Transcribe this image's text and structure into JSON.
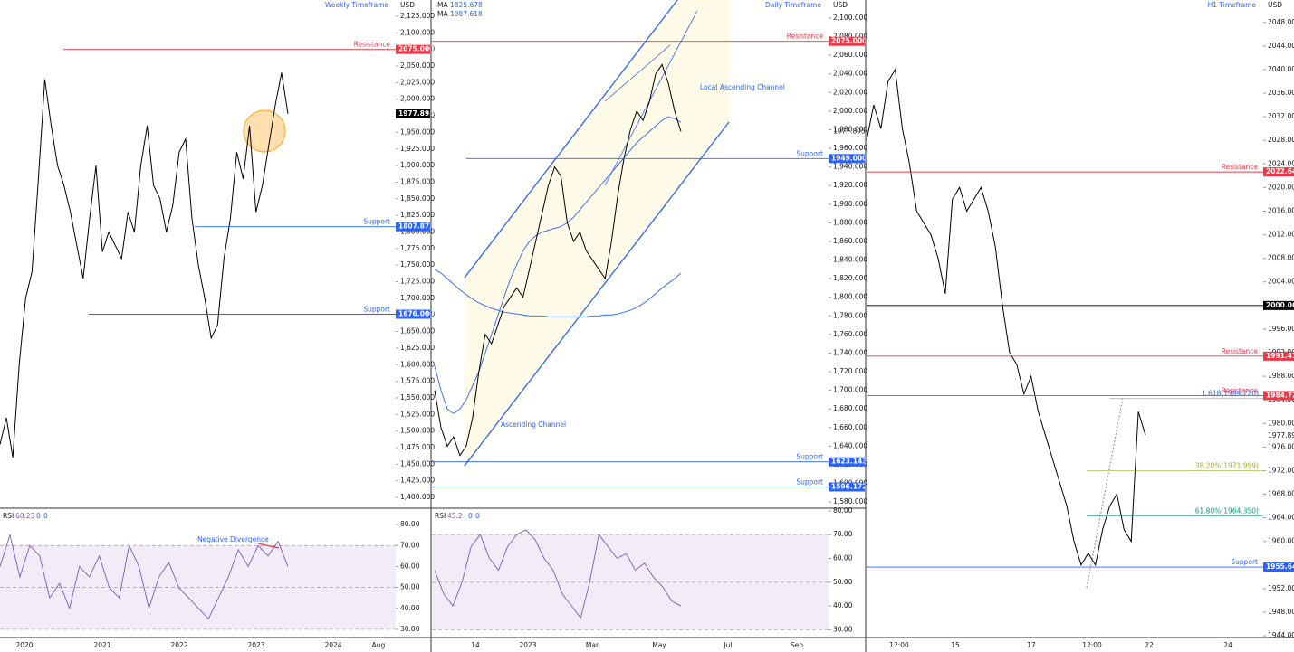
{
  "chart_data": [
    {
      "type": "line",
      "title": "Weekly Timeframe",
      "currency": "USD",
      "color": "#000000",
      "ylim": [
        1383.7,
        2149.5
      ],
      "yticks": [
        {
          "value": 2125,
          "label": "2,125.000"
        },
        {
          "value": 2100,
          "label": "2,100.000"
        },
        {
          "value": 2075,
          "label": "2,075.000"
        },
        {
          "value": 2050,
          "label": "2,050.000"
        },
        {
          "value": 2025,
          "label": "2,025.000"
        },
        {
          "value": 2000,
          "label": "2,000.000"
        },
        {
          "value": 1975,
          "label": "1,975.000"
        },
        {
          "value": 1950,
          "label": "1,950.000"
        },
        {
          "value": 1925,
          "label": "1,925.000"
        },
        {
          "value": 1900,
          "label": "1,900.000"
        },
        {
          "value": 1875,
          "label": "1,875.000"
        },
        {
          "value": 1850,
          "label": "1,850.000"
        },
        {
          "value": 1825,
          "label": "1,825.000"
        },
        {
          "value": 1800,
          "label": "1,800.000"
        },
        {
          "value": 1775,
          "label": "1,775.000"
        },
        {
          "value": 1750,
          "label": "1,750.000"
        },
        {
          "value": 1725,
          "label": "1,725.000"
        },
        {
          "value": 1700,
          "label": "1,700.000"
        },
        {
          "value": 1675,
          "label": "1,675.000"
        },
        {
          "value": 1650,
          "label": "1,650.000"
        },
        {
          "value": 1625,
          "label": "1,625.000"
        },
        {
          "value": 1600,
          "label": "1,600.000"
        },
        {
          "value": 1575,
          "label": "1,575.000"
        },
        {
          "value": 1550,
          "label": "1,550.000"
        },
        {
          "value": 1525,
          "label": "1,525.000"
        },
        {
          "value": 1500,
          "label": "1,500.000"
        },
        {
          "value": 1475,
          "label": "1,475.000"
        },
        {
          "value": 1450,
          "label": "1,450.000"
        },
        {
          "value": 1425,
          "label": "1,425.000"
        },
        {
          "value": 1400,
          "label": "1,400.000"
        }
      ],
      "values": [
        1480,
        1520,
        1460,
        1600,
        1700,
        1740,
        1880,
        2030,
        1960,
        1900,
        1870,
        1830,
        1780,
        1730,
        1820,
        1900,
        1770,
        1800,
        1780,
        1760,
        1830,
        1800,
        1900,
        1960,
        1870,
        1850,
        1800,
        1840,
        1920,
        1940,
        1820,
        1750,
        1700,
        1640,
        1660,
        1760,
        1820,
        1920,
        1880,
        1960,
        1830,
        1870,
        1930,
        1990,
        2040,
        1978
      ],
      "xlabels": [
        "2020",
        "2021",
        "2022",
        "2023",
        "2024",
        "Aug"
      ],
      "levels": [
        {
          "name": "Resistance",
          "value": 2075,
          "label": "2075.000",
          "color": "#f23645"
        },
        {
          "name": "Support",
          "value": 1807.872,
          "label": "1807.872",
          "color": "#2962ff"
        },
        {
          "name": "Support",
          "value": 1676,
          "label": "1676.000",
          "color": "#2962ff"
        }
      ],
      "last": 1977.895,
      "annotations": [],
      "rsi": {
        "label": "RSI",
        "value": 60.23,
        "params": [
          0,
          0
        ],
        "color": "#7e57c2",
        "ylim": [
          26.1,
          87.8
        ],
        "yticks": [
          {
            "value": 80,
            "label": "80.00"
          },
          {
            "value": 70,
            "label": "70.00"
          },
          {
            "value": 60,
            "label": "60.00"
          },
          {
            "value": 50,
            "label": "50.00"
          },
          {
            "value": 40,
            "label": "40.00"
          },
          {
            "value": 30,
            "label": "30.00"
          }
        ],
        "levels": [
          30,
          50,
          70
        ],
        "values": [
          60,
          75,
          55,
          70,
          65,
          45,
          52,
          40,
          60,
          55,
          65,
          50,
          45,
          70,
          60,
          40,
          55,
          62,
          50,
          45,
          40,
          35,
          45,
          55,
          68,
          60,
          70,
          65,
          72,
          60
        ],
        "annotations": [
          "Negative Divergence"
        ]
      }
    },
    {
      "type": "line",
      "title": "Daily Timeframe",
      "currency": "USD",
      "color": "#000000",
      "ylim": [
        1573.3,
        2119.4
      ],
      "yticks": [
        {
          "value": 2100,
          "label": "2,100.000"
        },
        {
          "value": 2080,
          "label": "2,080.000"
        },
        {
          "value": 2060,
          "label": "2,060.000"
        },
        {
          "value": 2040,
          "label": "2,040.000"
        },
        {
          "value": 2020,
          "label": "2,020.000"
        },
        {
          "value": 2000,
          "label": "2,000.000"
        },
        {
          "value": 1980,
          "label": "1,980.000"
        },
        {
          "value": 1960,
          "label": "1,960.000"
        },
        {
          "value": 1940,
          "label": "1,940.000"
        },
        {
          "value": 1920,
          "label": "1,920.000"
        },
        {
          "value": 1900,
          "label": "1,900.000"
        },
        {
          "value": 1880,
          "label": "1,880.000"
        },
        {
          "value": 1860,
          "label": "1,860.000"
        },
        {
          "value": 1840,
          "label": "1,840.000"
        },
        {
          "value": 1820,
          "label": "1,820.000"
        },
        {
          "value": 1800,
          "label": "1,800.000"
        },
        {
          "value": 1780,
          "label": "1,780.000"
        },
        {
          "value": 1760,
          "label": "1,760.000"
        },
        {
          "value": 1740,
          "label": "1,740.000"
        },
        {
          "value": 1720,
          "label": "1,720.000"
        },
        {
          "value": 1700,
          "label": "1,700.000"
        },
        {
          "value": 1680,
          "label": "1,680.000"
        },
        {
          "value": 1660,
          "label": "1,660.000"
        },
        {
          "value": 1640,
          "label": "1,640.000"
        },
        {
          "value": 1620,
          "label": "1,620.000"
        },
        {
          "value": 1600,
          "label": "1,600.000"
        },
        {
          "value": 1580,
          "label": "1,580.000"
        }
      ],
      "values": [
        1700,
        1660,
        1640,
        1650,
        1630,
        1640,
        1670,
        1720,
        1760,
        1750,
        1770,
        1790,
        1800,
        1810,
        1800,
        1830,
        1860,
        1890,
        1920,
        1940,
        1930,
        1880,
        1860,
        1870,
        1850,
        1840,
        1830,
        1820,
        1860,
        1910,
        1950,
        1980,
        2000,
        1990,
        2010,
        2040,
        2050,
        2030,
        2000,
        1978
      ],
      "ma": [
        {
          "label": "MA",
          "value": 1825.678,
          "color": "#2962ff",
          "values": [
            1830,
            1826,
            1820,
            1814,
            1808,
            1803,
            1798,
            1794,
            1791,
            1788,
            1786,
            1784,
            1783,
            1782,
            1781,
            1780,
            1780,
            1780,
            1779,
            1779,
            1779,
            1779,
            1779,
            1779,
            1779,
            1780,
            1780,
            1781,
            1781,
            1782,
            1784,
            1786,
            1789,
            1793,
            1798,
            1804,
            1810,
            1815,
            1820,
            1826
          ]
        },
        {
          "label": "MA",
          "value": 1987.618,
          "color": "#2962ff",
          "values": [
            1726,
            1700,
            1680,
            1675,
            1680,
            1690,
            1705,
            1720,
            1740,
            1760,
            1780,
            1800,
            1820,
            1835,
            1850,
            1860,
            1866,
            1870,
            1872,
            1874,
            1876,
            1880,
            1886,
            1894,
            1902,
            1910,
            1918,
            1926,
            1934,
            1942,
            1950,
            1958,
            1966,
            1972,
            1978,
            1984,
            1990,
            1994,
            1992,
            1988
          ]
        }
      ],
      "xlabels": [
        "14",
        "2023",
        "Mar",
        "May",
        "Jul",
        "Sep"
      ],
      "levels": [
        {
          "name": "Resistance",
          "value": 2075,
          "label": "2075.000",
          "color": "#f23645"
        },
        {
          "name": "Support",
          "value": 1949,
          "label": "1949.000",
          "color": "#2962ff"
        },
        {
          "name": "Support",
          "value": 1623.143,
          "label": "1623.143",
          "color": "#2962ff"
        },
        {
          "name": "Support",
          "value": 1596.172,
          "label": "1596.172",
          "color": "#2962ff"
        }
      ],
      "last": 1977.895,
      "annotations": [
        "Local Ascending Channel",
        "Ascending Channel"
      ],
      "rsi": {
        "label": "RSI",
        "value": 45.2,
        "params": [
          0,
          0
        ],
        "color": "#7e57c2",
        "ylim": [
          26.7,
          81.1
        ],
        "yticks": [
          {
            "value": 80,
            "label": "80.00"
          },
          {
            "value": 70,
            "label": "70.00"
          },
          {
            "value": 60,
            "label": "60.00"
          },
          {
            "value": 50,
            "label": "50.00"
          },
          {
            "value": 40,
            "label": "40.00"
          },
          {
            "value": 30,
            "label": "30.00"
          }
        ],
        "levels": [
          30,
          50,
          70
        ],
        "values": [
          55,
          45,
          40,
          50,
          65,
          70,
          60,
          55,
          65,
          70,
          72,
          68,
          60,
          55,
          45,
          40,
          35,
          50,
          70,
          65,
          60,
          62,
          55,
          58,
          52,
          48,
          42,
          40
        ],
        "annotations": []
      }
    },
    {
      "type": "line",
      "title": "H1 Timeframe",
      "currency": "USD",
      "color": "#000000",
      "ylim": [
        1943.7,
        2051.8
      ],
      "yticks": [
        {
          "value": 2048,
          "label": "2048.000"
        },
        {
          "value": 2044,
          "label": "2044.000"
        },
        {
          "value": 2040,
          "label": "2040.000"
        },
        {
          "value": 2036,
          "label": "2036.000"
        },
        {
          "value": 2032,
          "label": "2032.000"
        },
        {
          "value": 2028,
          "label": "2028.000"
        },
        {
          "value": 2024,
          "label": "2024.000"
        },
        {
          "value": 2020,
          "label": "2020.000"
        },
        {
          "value": 2016,
          "label": "2016.000"
        },
        {
          "value": 2012,
          "label": "2012.000"
        },
        {
          "value": 2008,
          "label": "2008.000"
        },
        {
          "value": 2004,
          "label": "2004.000"
        },
        {
          "value": 2000,
          "label": "2000.000"
        },
        {
          "value": 1996,
          "label": "1996.000"
        },
        {
          "value": 1992,
          "label": "1992.000"
        },
        {
          "value": 1988,
          "label": "1988.000"
        },
        {
          "value": 1984,
          "label": "1984.000"
        },
        {
          "value": 1980,
          "label": "1980.000"
        },
        {
          "value": 1976,
          "label": "1976.000"
        },
        {
          "value": 1972,
          "label": "1972.000"
        },
        {
          "value": 1968,
          "label": "1968.000"
        },
        {
          "value": 1964,
          "label": "1964.000"
        },
        {
          "value": 1960,
          "label": "1960.000"
        },
        {
          "value": 1956,
          "label": "1956.000"
        },
        {
          "value": 1952,
          "label": "1952.000"
        },
        {
          "value": 1948,
          "label": "1948.000"
        },
        {
          "value": 1944,
          "label": "1944.000"
        }
      ],
      "values": [
        2028,
        2034,
        2030,
        2038,
        2040,
        2030,
        2024,
        2016,
        2014,
        2012,
        2008,
        2002,
        2018,
        2020,
        2016,
        2018,
        2020,
        2016,
        2010,
        2000,
        1992,
        1990,
        1985,
        1988,
        1982,
        1978,
        1974,
        1970,
        1966,
        1960,
        1956,
        1958,
        1956,
        1962,
        1966,
        1968,
        1962,
        1960,
        1982,
        1978
      ],
      "xlabels": [
        "12:00",
        "15",
        "17",
        "12:00",
        "22",
        "24"
      ],
      "levels": [
        {
          "name": "Resistance",
          "value": 2022.649,
          "label": "2022.649",
          "color": "#f23645"
        },
        {
          "value": 2000,
          "label": "2000.000",
          "color": "#000000"
        },
        {
          "name": "Resistance",
          "value": 1991.41,
          "label": "1991.410",
          "color": "#f23645"
        },
        {
          "name": "Resistance",
          "value": 1984.726,
          "label": "1984.726",
          "color": "#f23645"
        },
        {
          "name": "Support",
          "value": 1955.647,
          "label": "1955.647",
          "color": "#2962ff"
        }
      ],
      "fib": [
        {
          "label": "1.618(1984.220)",
          "value": 1984.22,
          "color": "#2962ff"
        },
        {
          "label": "38.20%(1971.999)",
          "value": 1971.999,
          "color": "#9fae27"
        },
        {
          "label": "61.80%(1964.350)",
          "value": 1964.35,
          "color": "#089981"
        }
      ],
      "last": 1977.895,
      "annotations": []
    }
  ]
}
